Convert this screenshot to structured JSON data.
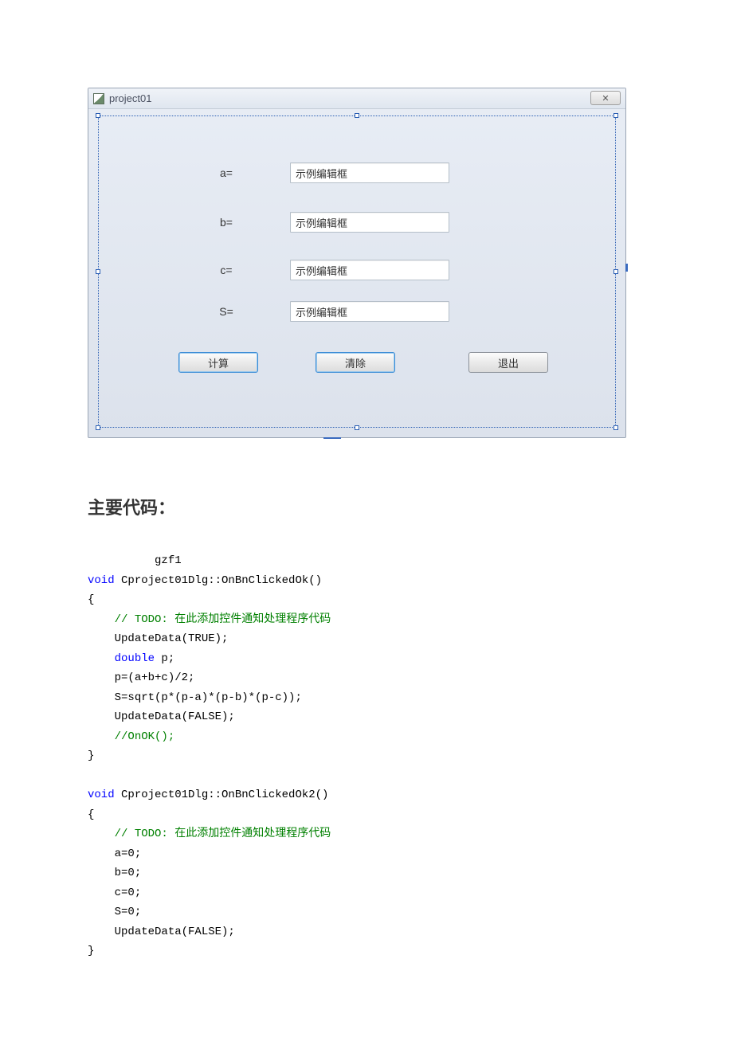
{
  "window": {
    "title": "project01",
    "close_glyph": "✕",
    "background_color": "#dce2ec",
    "border_color": "#9aa5b5"
  },
  "labels": {
    "a": "a=",
    "b": "b=",
    "c": "c=",
    "s": "S="
  },
  "fields": {
    "a": "示例编辑框",
    "b": "示例编辑框",
    "c": "示例编辑框",
    "s": "示例编辑框"
  },
  "buttons": {
    "calculate": "计算",
    "clear": "清除",
    "exit": "退出"
  },
  "section_title": "主要代码：",
  "code": {
    "indent_note": "gzf1",
    "fn1_sig": " Cproject01Dlg::OnBnClickedOk()",
    "fn2_sig": " Cproject01Dlg::OnBnClickedOk2()",
    "kw_void": "void",
    "kw_double": "double",
    "comment_todo": "// TODO: 在此添加控件通知处理程序代码",
    "comment_onok": "//OnOK();",
    "line_update_true": "UpdateData(TRUE);",
    "line_decl_p": " p;",
    "line_p": "p=(a+b+c)/2;",
    "line_s": "S=sqrt(p*(p-a)*(p-b)*(p-c));",
    "line_update_false": "UpdateData(FALSE);",
    "line_a0": "a=0;",
    "line_b0": "b=0;",
    "line_c0": "c=0;",
    "line_s0": "S=0;",
    "brace_open": "{",
    "brace_close": "}"
  }
}
